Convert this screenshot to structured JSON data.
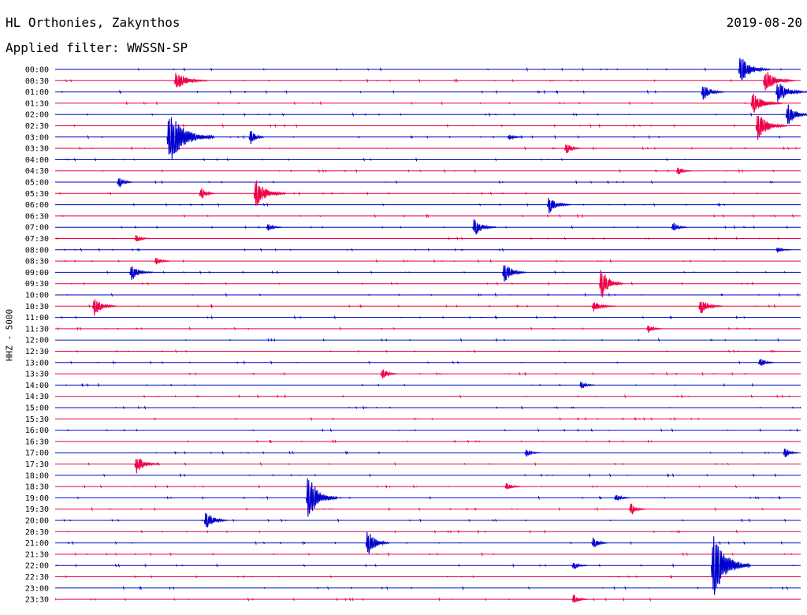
{
  "header": {
    "station": "HL Orthonies, Zakynthos",
    "filter": "Applied filter: WWSSN-SP",
    "date": "2019-08-20"
  },
  "chart_data": {
    "type": "line",
    "title": "HL Orthonies, Zakynthos",
    "subtitle": "Applied filter: WWSSN-SP",
    "date": "2019-08-20",
    "ylabel": "HHZ - 5000",
    "trace_colors": [
      "#0000cc",
      "#ee0044"
    ],
    "row_labels": [
      "00:00",
      "00:30",
      "01:00",
      "01:30",
      "02:00",
      "02:30",
      "03:00",
      "03:30",
      "04:00",
      "04:30",
      "05:00",
      "05:30",
      "06:00",
      "06:30",
      "07:00",
      "07:30",
      "08:00",
      "08:30",
      "09:00",
      "09:30",
      "10:00",
      "10:30",
      "11:00",
      "11:30",
      "12:00",
      "12:30",
      "13:00",
      "13:30",
      "14:00",
      "14:30",
      "15:00",
      "15:30",
      "16:00",
      "16:30",
      "17:00",
      "17:30",
      "18:00",
      "18:30",
      "19:00",
      "19:30",
      "20:00",
      "20:30",
      "21:00",
      "21:30",
      "22:00",
      "22:30",
      "23:00",
      "23:30"
    ],
    "events": [
      {
        "row": 0,
        "minute": 27.5,
        "amp": 1.3,
        "dur": 4
      },
      {
        "row": 1,
        "minute": 4.8,
        "amp": 0.9,
        "dur": 4
      },
      {
        "row": 1,
        "minute": 28.5,
        "amp": 1.1,
        "dur": 4
      },
      {
        "row": 2,
        "minute": 29.0,
        "amp": 1.0,
        "dur": 4
      },
      {
        "row": 2,
        "minute": 26.0,
        "amp": 0.8,
        "dur": 3
      },
      {
        "row": 3,
        "minute": 28.0,
        "amp": 1.0,
        "dur": 4
      },
      {
        "row": 4,
        "minute": 29.4,
        "amp": 1.1,
        "dur": 3
      },
      {
        "row": 5,
        "minute": 28.2,
        "amp": 1.3,
        "dur": 4
      },
      {
        "row": 6,
        "minute": 4.5,
        "amp": 2.6,
        "dur": 6
      },
      {
        "row": 6,
        "minute": 7.8,
        "amp": 0.7,
        "dur": 2
      },
      {
        "row": 6,
        "minute": 18.2,
        "amp": 0.3,
        "dur": 2
      },
      {
        "row": 7,
        "minute": 20.5,
        "amp": 0.6,
        "dur": 2
      },
      {
        "row": 9,
        "minute": 25.0,
        "amp": 0.4,
        "dur": 2
      },
      {
        "row": 10,
        "minute": 2.5,
        "amp": 0.6,
        "dur": 2
      },
      {
        "row": 11,
        "minute": 5.8,
        "amp": 0.6,
        "dur": 2
      },
      {
        "row": 11,
        "minute": 8.0,
        "amp": 1.3,
        "dur": 4
      },
      {
        "row": 12,
        "minute": 19.8,
        "amp": 0.8,
        "dur": 3
      },
      {
        "row": 14,
        "minute": 8.5,
        "amp": 0.4,
        "dur": 2
      },
      {
        "row": 14,
        "minute": 16.8,
        "amp": 0.9,
        "dur": 3
      },
      {
        "row": 14,
        "minute": 24.8,
        "amp": 0.5,
        "dur": 2
      },
      {
        "row": 15,
        "minute": 3.2,
        "amp": 0.4,
        "dur": 2
      },
      {
        "row": 16,
        "minute": 29.0,
        "amp": 0.3,
        "dur": 2
      },
      {
        "row": 17,
        "minute": 4.0,
        "amp": 0.4,
        "dur": 2
      },
      {
        "row": 18,
        "minute": 3.0,
        "amp": 0.7,
        "dur": 3
      },
      {
        "row": 18,
        "minute": 18.0,
        "amp": 1.0,
        "dur": 3
      },
      {
        "row": 19,
        "minute": 21.9,
        "amp": 1.6,
        "dur": 3
      },
      {
        "row": 21,
        "minute": 1.5,
        "amp": 0.9,
        "dur": 3
      },
      {
        "row": 21,
        "minute": 21.6,
        "amp": 0.5,
        "dur": 3
      },
      {
        "row": 21,
        "minute": 25.9,
        "amp": 0.8,
        "dur": 3
      },
      {
        "row": 23,
        "minute": 23.8,
        "amp": 0.4,
        "dur": 2
      },
      {
        "row": 26,
        "minute": 28.3,
        "amp": 0.5,
        "dur": 2
      },
      {
        "row": 27,
        "minute": 13.1,
        "amp": 0.6,
        "dur": 2
      },
      {
        "row": 28,
        "minute": 21.1,
        "amp": 0.4,
        "dur": 2
      },
      {
        "row": 34,
        "minute": 18.9,
        "amp": 0.4,
        "dur": 2
      },
      {
        "row": 34,
        "minute": 29.3,
        "amp": 0.5,
        "dur": 2
      },
      {
        "row": 35,
        "minute": 3.2,
        "amp": 0.9,
        "dur": 3
      },
      {
        "row": 37,
        "minute": 18.1,
        "amp": 0.4,
        "dur": 2
      },
      {
        "row": 38,
        "minute": 10.1,
        "amp": 2.2,
        "dur": 4
      },
      {
        "row": 38,
        "minute": 22.5,
        "amp": 0.4,
        "dur": 2
      },
      {
        "row": 39,
        "minute": 23.1,
        "amp": 0.6,
        "dur": 2
      },
      {
        "row": 40,
        "minute": 6.0,
        "amp": 0.9,
        "dur": 3
      },
      {
        "row": 42,
        "minute": 12.5,
        "amp": 1.3,
        "dur": 3
      },
      {
        "row": 42,
        "minute": 21.6,
        "amp": 0.6,
        "dur": 2
      },
      {
        "row": 44,
        "minute": 26.4,
        "amp": 3.2,
        "dur": 5
      },
      {
        "row": 44,
        "minute": 20.8,
        "amp": 0.4,
        "dur": 2
      },
      {
        "row": 47,
        "minute": 20.8,
        "amp": 0.5,
        "dur": 2
      }
    ]
  }
}
